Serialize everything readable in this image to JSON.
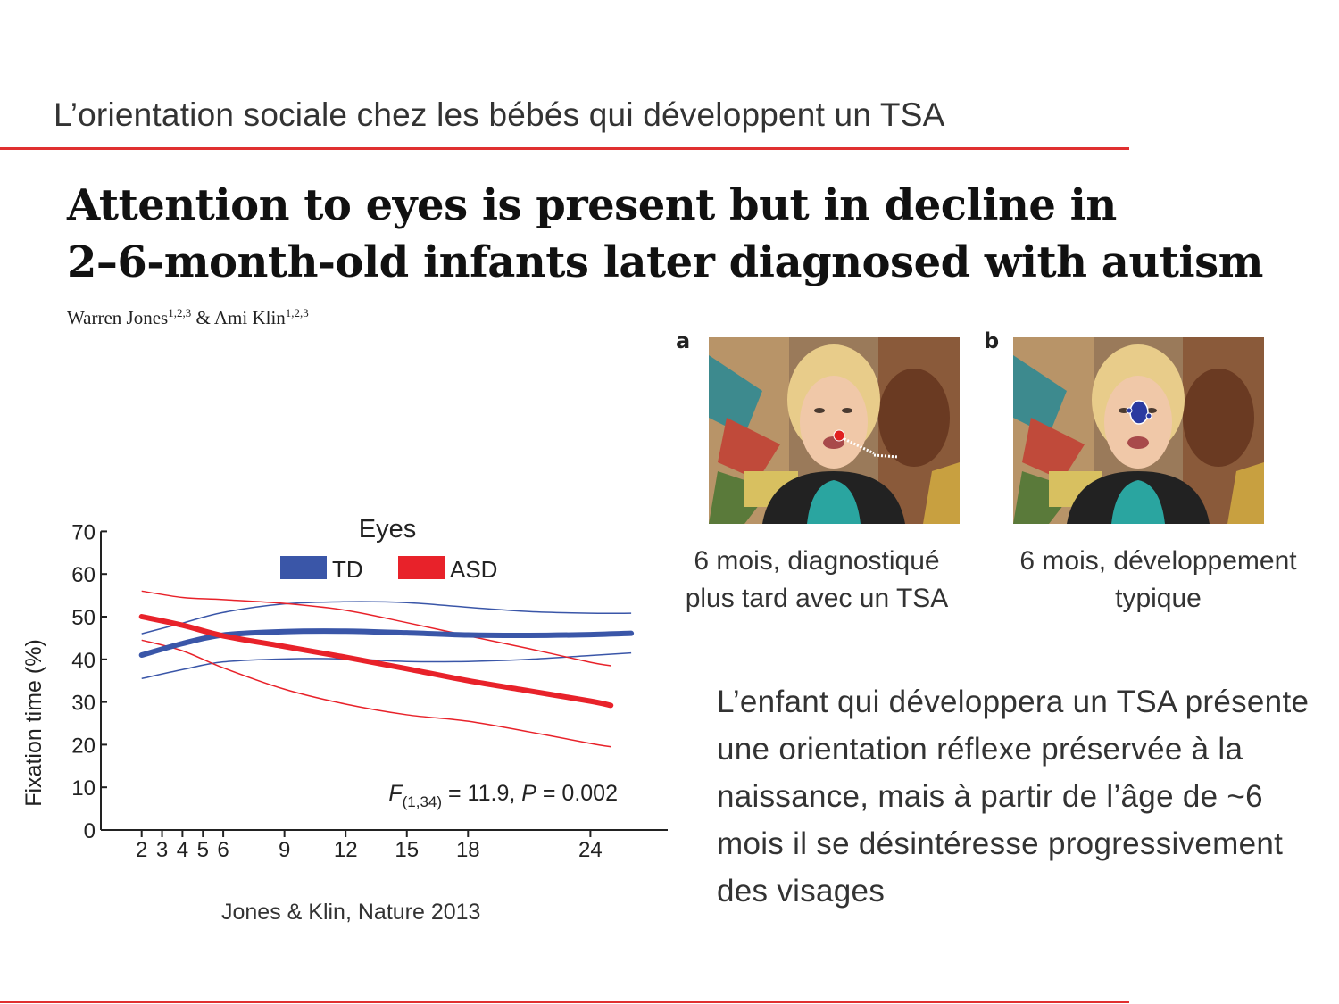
{
  "slide": {
    "title": "L’orientation sociale chez les bébés qui développent un TSA"
  },
  "paper": {
    "title_line1": "Attention to eyes is present but in decline in",
    "title_line2": "2–6-month-old infants later diagnosed with autism",
    "author1": "Warren Jones",
    "author1_sup": "1,2,3",
    "author_sep": " & ",
    "author2": "Ami Klin",
    "author2_sup": "1,2,3"
  },
  "panels": {
    "a": {
      "letter": "a",
      "caption_line1": "6 mois, diagnostiqué",
      "caption_line2": "plus tard avec un TSA"
    },
    "b": {
      "letter": "b",
      "caption_line1": "6 mois, développement",
      "caption_line2": "typique"
    }
  },
  "body_text": "L’enfant qui développera un TSA présente une orientation réflexe préservée à la naissance, mais à partir de l’âge de ~6 mois il se désintéresse progressivement des visages",
  "source": "Jones & Klin, Nature 2013",
  "chart_data": {
    "type": "line",
    "title": "Eyes",
    "ylabel": "Fixation time (%)",
    "xlabel": "",
    "ylim": [
      0,
      70
    ],
    "xlim": [
      0,
      27
    ],
    "y_ticks": [
      0,
      10,
      20,
      30,
      40,
      50,
      60,
      70
    ],
    "x_ticks": [
      2,
      3,
      4,
      5,
      6,
      9,
      12,
      15,
      18,
      24
    ],
    "legend_position": "top",
    "annotation": {
      "F_label": "F",
      "F_sub": "(1,34)",
      "F_value": " = 11.9, ",
      "P_label": "P",
      "P_value": " = 0.002"
    },
    "series": [
      {
        "name": "TD",
        "color": "#3a56a8",
        "x": [
          2,
          4,
          6,
          9,
          12,
          15,
          18,
          21,
          24,
          26
        ],
        "y": [
          41,
          43.7,
          45.7,
          46.5,
          46.6,
          46.2,
          45.7,
          45.6,
          45.8,
          46.1
        ],
        "upper": [
          46,
          48.5,
          51,
          53,
          53.5,
          53.3,
          52.2,
          51.2,
          50.8,
          50.8
        ],
        "lower": [
          35.5,
          37.6,
          39.4,
          40.1,
          40.1,
          39.5,
          39.5,
          40,
          40.9,
          41.5
        ]
      },
      {
        "name": "ASD",
        "color": "#e8222a",
        "x": [
          2,
          4,
          6,
          9,
          12,
          15,
          18,
          21,
          24,
          25
        ],
        "y": [
          50,
          48,
          45.5,
          43,
          40.5,
          37.8,
          35,
          32.6,
          30.2,
          29.2
        ],
        "upper": [
          56,
          54.5,
          54,
          53.1,
          51.5,
          48.6,
          45.5,
          42.5,
          39.3,
          38.5
        ],
        "lower": [
          44.5,
          42,
          38,
          33,
          29.5,
          27,
          25.5,
          23,
          20.3,
          19.5
        ]
      }
    ]
  }
}
